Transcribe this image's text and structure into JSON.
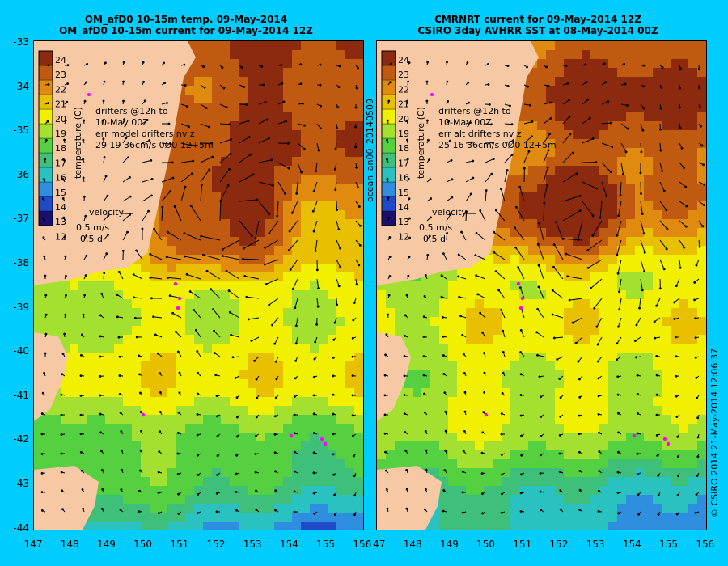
{
  "left": {
    "title_line1": "OM_afD0 10-15m temp. 09-May-2014",
    "title_line2": "OM_afD0 10-15m current for 09-May-2014 12Z",
    "colorbar": {
      "label": "temperature (C)",
      "ticks": [
        "24",
        "23",
        "22",
        "21",
        "20",
        "19",
        "18",
        "17",
        "16",
        "15",
        "14",
        "13",
        "12"
      ]
    },
    "drifters": {
      "line1": "drifters @12h to",
      "line2": "10-May 00Z",
      "line3": "err model drifters nv z",
      "line4": "29   19     36cm/s 0Ø0 12+5m"
    },
    "velocity": {
      "title": "velocity",
      "speed": "0.5 m/s",
      "time": "0.5 d"
    }
  },
  "right": {
    "title_line1": "CMRNRT current for 09-May-2014 12Z",
    "title_line2": "CSIRO 3day AVHRR SST at 08-May-2014 00Z",
    "colorbar": {
      "label": "temperature (C)",
      "ticks": [
        "24",
        "23",
        "22",
        "21",
        "20",
        "19",
        "18",
        "17",
        "16",
        "15",
        "14",
        "13",
        "12"
      ]
    },
    "drifters": {
      "line1": "drifters @12h to",
      "line2": "10-May 00Z",
      "line3": "err alt drifters nv z",
      "line4": "25 16 36cm/s 0Ø0 12+5m"
    },
    "velocity": {
      "title": "velocity",
      "speed": "0.5 m/s",
      "time": "0.5 d"
    }
  },
  "side_label": "ocean_an00_20140509",
  "credit": "© CSIRO 2014  21-May-2014 12:06:37",
  "latitudes": [
    "-33",
    "-34",
    "-35",
    "-36",
    "-37",
    "-38",
    "-39",
    "-40",
    "-41",
    "-42",
    "-43",
    "-44"
  ],
  "longitudes": [
    "147",
    "148",
    "149",
    "150",
    "151",
    "152",
    "153",
    "154",
    "155",
    "156"
  ],
  "colors": {
    "background": "#00cdfd",
    "land": "#f6c9a4",
    "colormap": [
      "#1a1070",
      "#1f4bc8",
      "#2f8ee0",
      "#29c2c0",
      "#3ec07a",
      "#54d040",
      "#a4e030",
      "#f0f000",
      "#e8c000",
      "#e08a10",
      "#c05a10",
      "#8c2a10"
    ]
  }
}
